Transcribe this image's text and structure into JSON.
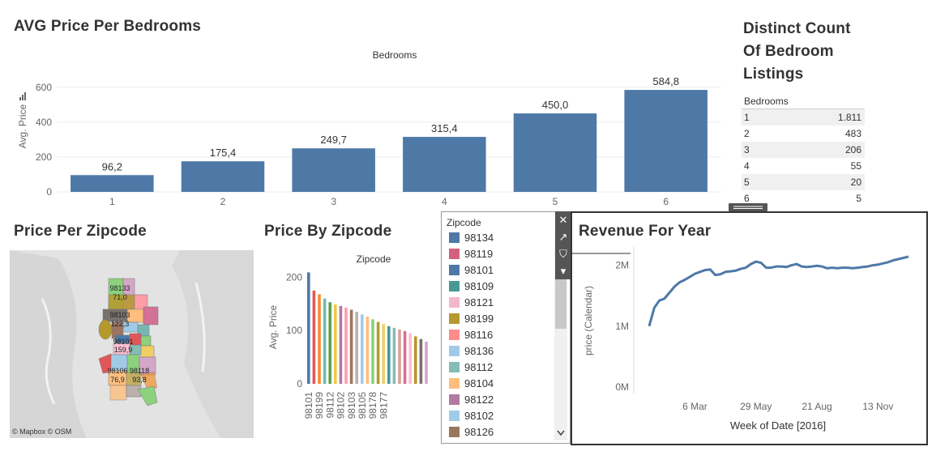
{
  "avg_price_chart": {
    "title": "AVG Price Per Bedrooms",
    "x_header": "Bedrooms",
    "ylabel": "Avg. Price",
    "y_ticks": [
      "600",
      "400",
      "200",
      "0"
    ],
    "categories": [
      "1",
      "2",
      "3",
      "4",
      "5",
      "6"
    ],
    "values": [
      96.2,
      175.4,
      249.7,
      315.4,
      450.0,
      584.8
    ],
    "value_labels": [
      "96,2",
      "175,4",
      "249,7",
      "315,4",
      "450,0",
      "584,8"
    ],
    "ylim": [
      0,
      650
    ],
    "color": "#4e79a7"
  },
  "distinct_count": {
    "title_line1": "Distinct Count",
    "title_line2": "Of Bedroom",
    "title_line3": "Listings",
    "header": "Bedrooms",
    "rows": [
      {
        "k": "1",
        "v": "1.811"
      },
      {
        "k": "2",
        "v": "483"
      },
      {
        "k": "3",
        "v": "206"
      },
      {
        "k": "4",
        "v": "55"
      },
      {
        "k": "5",
        "v": "20"
      },
      {
        "k": "6",
        "v": "5"
      }
    ]
  },
  "price_per_zipcode": {
    "title": "Price Per Zipcode",
    "attribution": "© Mapbox © OSM",
    "region_labels": [
      "98133",
      "71,0",
      "98103",
      "122,3",
      "98101",
      "159,9",
      "98106",
      "76,9",
      "98118",
      "93,8"
    ]
  },
  "price_by_zipcode": {
    "title": "Price By Zipcode",
    "x_header": "Zipcode",
    "ylabel": "Avg. Price",
    "y_ticks": [
      "200",
      "100",
      "0"
    ],
    "tick_labels": [
      "98101",
      "98199",
      "98112",
      "98102",
      "98103",
      "98105",
      "98178",
      "98177"
    ],
    "values": [
      209,
      175,
      168,
      160,
      153,
      149,
      146,
      143,
      139,
      135,
      130,
      126,
      121,
      116,
      112,
      108,
      105,
      102,
      99,
      95,
      89,
      84,
      79
    ],
    "ylim": [
      0,
      240
    ],
    "colors": [
      "#4e79a7",
      "#e15759",
      "#f28e2b",
      "#76b7b2",
      "#59a14f",
      "#edc948",
      "#b07aa1",
      "#ff9da7",
      "#9c755f",
      "#bab0ac",
      "#a0cbe8",
      "#ffbe7d",
      "#8cd17d",
      "#b6992d",
      "#f1ce63",
      "#499894",
      "#86bcb6",
      "#e19d9a",
      "#d37295",
      "#fabfd2",
      "#b6992d",
      "#79706e",
      "#d4a6c8"
    ]
  },
  "legend": {
    "title": "Zipcode",
    "items": [
      {
        "label": "98134",
        "color": "#4e79a7"
      },
      {
        "label": "98119",
        "color": "#d4607c"
      },
      {
        "label": "98101",
        "color": "#4e79a7"
      },
      {
        "label": "98109",
        "color": "#499894"
      },
      {
        "label": "98121",
        "color": "#f4b7c9"
      },
      {
        "label": "98199",
        "color": "#b6992d"
      },
      {
        "label": "98116",
        "color": "#ff8b8b"
      },
      {
        "label": "98136",
        "color": "#a0cbe8"
      },
      {
        "label": "98112",
        "color": "#86bcb6"
      },
      {
        "label": "98104",
        "color": "#ffbe7d"
      },
      {
        "label": "98122",
        "color": "#b07aa1"
      },
      {
        "label": "98102",
        "color": "#a0cbe8"
      },
      {
        "label": "98126",
        "color": "#9c755f"
      }
    ]
  },
  "controls": {
    "close": "✕",
    "popout": "↗",
    "filter": "⛉",
    "more": "▾"
  },
  "chart_data": [
    {
      "type": "bar",
      "title": "AVG Price Per Bedrooms",
      "xlabel": "Bedrooms",
      "ylabel": "Avg. Price",
      "categories": [
        "1",
        "2",
        "3",
        "4",
        "5",
        "6"
      ],
      "values": [
        96.2,
        175.4,
        249.7,
        315.4,
        450.0,
        584.8
      ],
      "ylim": [
        0,
        650
      ]
    },
    {
      "type": "line",
      "title": "Revenue For Year",
      "xlabel": "Week of Date [2016]",
      "ylabel": "price (Calendar)",
      "x_tick_labels": [
        "6 Mar",
        "29 May",
        "21 Aug",
        "13 Nov"
      ],
      "y_tick_labels": [
        "2M",
        "1M",
        "0M"
      ],
      "x_week": [
        1,
        2,
        3,
        4,
        5,
        6,
        7,
        8,
        9,
        10,
        11,
        12,
        13,
        14,
        15,
        16,
        17,
        18,
        19,
        20,
        21,
        22,
        23,
        24,
        25,
        26,
        27,
        28,
        29,
        30,
        31,
        32,
        33,
        34,
        35,
        36,
        37,
        38,
        39,
        40,
        41,
        42,
        43,
        44,
        45,
        46,
        47,
        48,
        49,
        50,
        51,
        52
      ],
      "y": [
        1.0,
        1.3,
        1.42,
        1.45,
        1.55,
        1.65,
        1.72,
        1.76,
        1.81,
        1.86,
        1.89,
        1.92,
        1.93,
        1.84,
        1.85,
        1.89,
        1.9,
        1.91,
        1.94,
        1.96,
        2.02,
        2.06,
        2.04,
        1.96,
        1.96,
        1.98,
        1.98,
        1.97,
        2.0,
        2.02,
        1.98,
        1.97,
        1.98,
        1.99,
        1.98,
        1.95,
        1.96,
        1.95,
        1.96,
        1.96,
        1.95,
        1.96,
        1.97,
        1.98,
        2.0,
        2.01,
        2.03,
        2.05,
        2.08,
        2.1,
        2.12,
        2.14
      ],
      "ylim": [
        0,
        2.3
      ],
      "color": "#4e79a7"
    }
  ],
  "revenue_chart": {
    "title": "Revenue For Year",
    "xlabel": "Week of Date [2016]",
    "ylabel": "price (Calendar)",
    "x_ticks": [
      "6 Mar",
      "29 May",
      "21 Aug",
      "13 Nov"
    ],
    "y_ticks": [
      "2M",
      "1M",
      "0M"
    ]
  }
}
